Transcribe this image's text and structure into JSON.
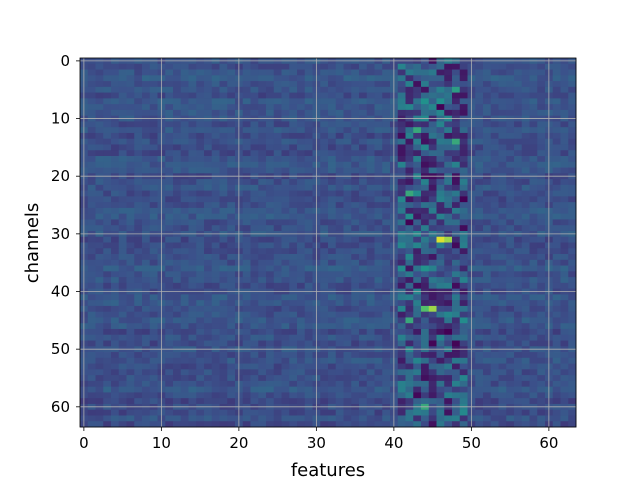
{
  "chart_data": {
    "type": "heatmap",
    "title": "",
    "xlabel": "features",
    "ylabel": "channels",
    "n_cols": 64,
    "n_rows": 64,
    "xlim": [
      -0.5,
      63.5
    ],
    "ylim": [
      63.5,
      -0.5
    ],
    "y_inverted": true,
    "grid": true,
    "colormap": "viridis",
    "x_ticks": [
      0,
      10,
      20,
      30,
      40,
      50,
      60
    ],
    "x_tick_labels": [
      "0",
      "10",
      "20",
      "30",
      "40",
      "50",
      "60"
    ],
    "y_ticks": [
      0,
      10,
      20,
      30,
      40,
      50,
      60
    ],
    "y_tick_labels": [
      "0",
      "10",
      "20",
      "30",
      "40",
      "50",
      "60"
    ],
    "background_value": 0.25,
    "highlights": [
      {
        "row": 31,
        "col": 46,
        "value": 0.95
      },
      {
        "row": 31,
        "col": 47,
        "value": 0.85
      },
      {
        "row": 43,
        "col": 45,
        "value": 0.85
      },
      {
        "row": 43,
        "col": 44,
        "value": 0.7
      },
      {
        "row": 12,
        "col": 43,
        "value": 0.6
      },
      {
        "row": 14,
        "col": 48,
        "value": 0.6
      },
      {
        "row": 23,
        "col": 42,
        "value": 0.6
      },
      {
        "row": 45,
        "col": 42,
        "value": 0.6
      },
      {
        "row": 60,
        "col": 44,
        "value": 0.6
      },
      {
        "row": 5,
        "col": 48,
        "value": 0.55
      },
      {
        "row": 7,
        "col": 44,
        "value": 0.5
      }
    ],
    "active_band_cols": [
      41,
      49
    ]
  },
  "colors": {
    "viridis_stops": [
      "#440154",
      "#3b528b",
      "#21918c",
      "#5ec962",
      "#fde725"
    ],
    "grid": "#b0b0b0",
    "frame": "#000000"
  }
}
